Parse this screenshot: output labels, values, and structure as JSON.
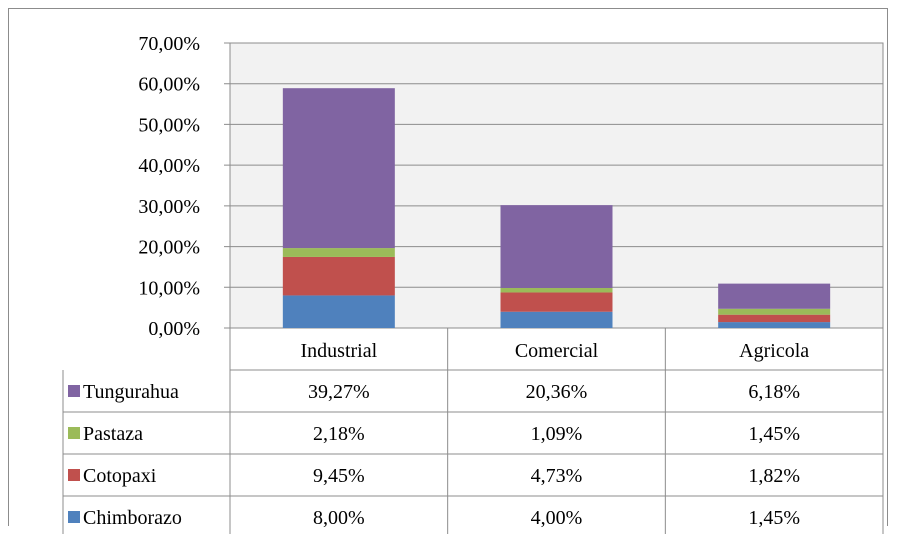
{
  "chart_data": {
    "type": "bar",
    "stacked": true,
    "categories": [
      "Industrial",
      "Comercial",
      "Agricola"
    ],
    "series": [
      {
        "name": "Chimborazo",
        "color": "#4f81bd",
        "values": [
          8.0,
          4.0,
          1.45
        ],
        "labels": [
          "8,00%",
          "4,00%",
          "1,45%"
        ]
      },
      {
        "name": "Cotopaxi",
        "color": "#c0504d",
        "values": [
          9.45,
          4.73,
          1.82
        ],
        "labels": [
          "9,45%",
          "4,73%",
          "1,82%"
        ]
      },
      {
        "name": "Pastaza",
        "color": "#9bbb59",
        "values": [
          2.18,
          1.09,
          1.45
        ],
        "labels": [
          "2,18%",
          "1,09%",
          "1,45%"
        ]
      },
      {
        "name": "Tungurahua",
        "color": "#8064a2",
        "values": [
          39.27,
          20.36,
          6.18
        ],
        "labels": [
          "39,27%",
          "20,36%",
          "6,18%"
        ]
      }
    ],
    "table_order": [
      "Tungurahua",
      "Pastaza",
      "Cotopaxi",
      "Chimborazo"
    ],
    "ylim": [
      0,
      70
    ],
    "yticks": [
      0,
      10,
      20,
      30,
      40,
      50,
      60,
      70
    ],
    "ytick_labels": [
      "0,00%",
      "10,00%",
      "20,00%",
      "30,00%",
      "40,00%",
      "50,00%",
      "60,00%",
      "70,00%"
    ],
    "grid": true,
    "legend": "data-table",
    "plot_background": "#f2f2f2"
  }
}
